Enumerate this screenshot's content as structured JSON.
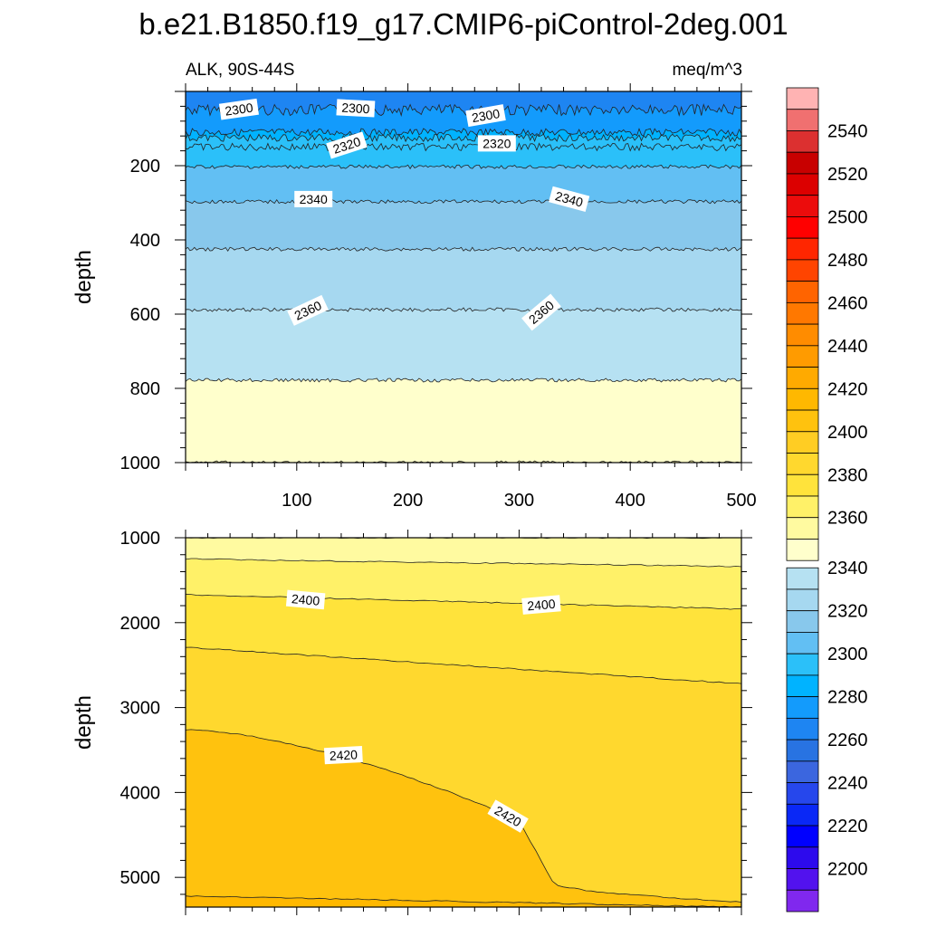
{
  "figure": {
    "title": "b.e21.B1850.f19_g17.CMIP6-piControl-2deg.001",
    "left_subtitle": "ALK, 90S-44S",
    "right_subtitle": "meq/m^3"
  },
  "chart_data": [
    {
      "type": "contour",
      "panel": "upper",
      "variable": "ALK",
      "region": "90S-44S",
      "units": "meq/m^3",
      "ylabel": "depth",
      "xlabel": "",
      "xlim": [
        0,
        500
      ],
      "ylim": [
        1000,
        0
      ],
      "xticks": [
        100,
        200,
        300,
        400,
        500
      ],
      "yticks": [
        200,
        400,
        600,
        800,
        1000
      ],
      "contour_lines": [
        {
          "level": 2300,
          "depth": 50
        },
        {
          "level": 2305,
          "depth": 110
        },
        {
          "level": 2310,
          "depth": 125
        },
        {
          "level": 2315,
          "depth": 150
        },
        {
          "level": 2320,
          "depth": 203
        },
        {
          "level": 2340,
          "depth": 297
        },
        {
          "level": 2350,
          "depth": 425
        },
        {
          "level": 2360,
          "depth": 588
        },
        {
          "level": 2370,
          "depth": 778
        },
        {
          "level": 2380,
          "depth": 1000
        }
      ],
      "contour_labels": [
        {
          "text": "2300",
          "x": 48,
          "depth": 48,
          "angle": -8
        },
        {
          "text": "2300",
          "x": 153,
          "depth": 45,
          "angle": 3
        },
        {
          "text": "2300",
          "x": 270,
          "depth": 65,
          "angle": -10
        },
        {
          "text": "2320",
          "x": 145,
          "depth": 145,
          "angle": -18
        },
        {
          "text": "2320",
          "x": 280,
          "depth": 140,
          "angle": 0
        },
        {
          "text": "2340",
          "x": 115,
          "depth": 290,
          "angle": 0
        },
        {
          "text": "2340",
          "x": 345,
          "depth": 290,
          "angle": 15
        },
        {
          "text": "2360",
          "x": 110,
          "depth": 590,
          "angle": -25
        },
        {
          "text": "2360",
          "x": 320,
          "depth": 595,
          "angle": -40
        }
      ]
    },
    {
      "type": "contour",
      "panel": "lower",
      "variable": "ALK",
      "ylabel": "depth",
      "xlabel": "",
      "xlim": [
        0,
        500
      ],
      "ylim": [
        5350,
        1000
      ],
      "yticks": [
        1000,
        2000,
        3000,
        4000,
        5000
      ],
      "contour_lines": [
        {
          "level": 2380,
          "depth_at_x0": 1000,
          "depth_at_x500": 1000
        },
        {
          "level": 2390,
          "depth_at_x0": 1250,
          "depth_at_x500": 1340
        },
        {
          "level": 2400,
          "depth_at_x0": 1670,
          "depth_at_x500": 1840
        },
        {
          "level": 2410,
          "depth_at_x0": 2290,
          "depth_at_x500": 2720
        },
        {
          "level": 2420,
          "depth_at_x0": 3260,
          "depth_at_x500": 5290
        },
        {
          "level": 2430,
          "depth_at_x0": 5220,
          "depth_at_x500": 5350
        }
      ],
      "contour_labels": [
        {
          "text": "2400",
          "x": 108,
          "depth": 1730,
          "angle": 5
        },
        {
          "text": "2400",
          "x": 320,
          "depth": 1790,
          "angle": -5
        },
        {
          "text": "2420",
          "x": 142,
          "depth": 3560,
          "angle": -3
        },
        {
          "text": "2420",
          "x": 290,
          "depth": 4280,
          "angle": 30
        }
      ]
    }
  ],
  "colorbar": {
    "labels": [
      "2540",
      "2520",
      "2500",
      "2480",
      "2460",
      "2440",
      "2420",
      "2400",
      "2380",
      "2360",
      "2340",
      "2320",
      "2300",
      "2280",
      "2260",
      "2240",
      "2220",
      "2200"
    ],
    "colors": [
      "#ffb3b3",
      "#f07070",
      "#dc3030",
      "#c80000",
      "#dc0000",
      "#ec0c0c",
      "#ff0000",
      "#ff2600",
      "#ff4400",
      "#ff6400",
      "#ff7800",
      "#ff8c00",
      "#ff9b00",
      "#ffaa00",
      "#ffb800",
      "#ffc20e",
      "#ffcd23",
      "#ffd82e",
      "#ffe33b",
      "#fff168",
      "#fffaa0",
      "#ffffcc",
      "#b6e1f2",
      "#a6d8f0",
      "#88c8ec",
      "#62bff3",
      "#2bc0f9",
      "#00b3ff",
      "#139bfc",
      "#1e85f2",
      "#2873e2",
      "#3b66df",
      "#2647ec",
      "#0a28f6",
      "#0000ff",
      "#2d0aed",
      "#5212ee",
      "#8028ee"
    ]
  }
}
